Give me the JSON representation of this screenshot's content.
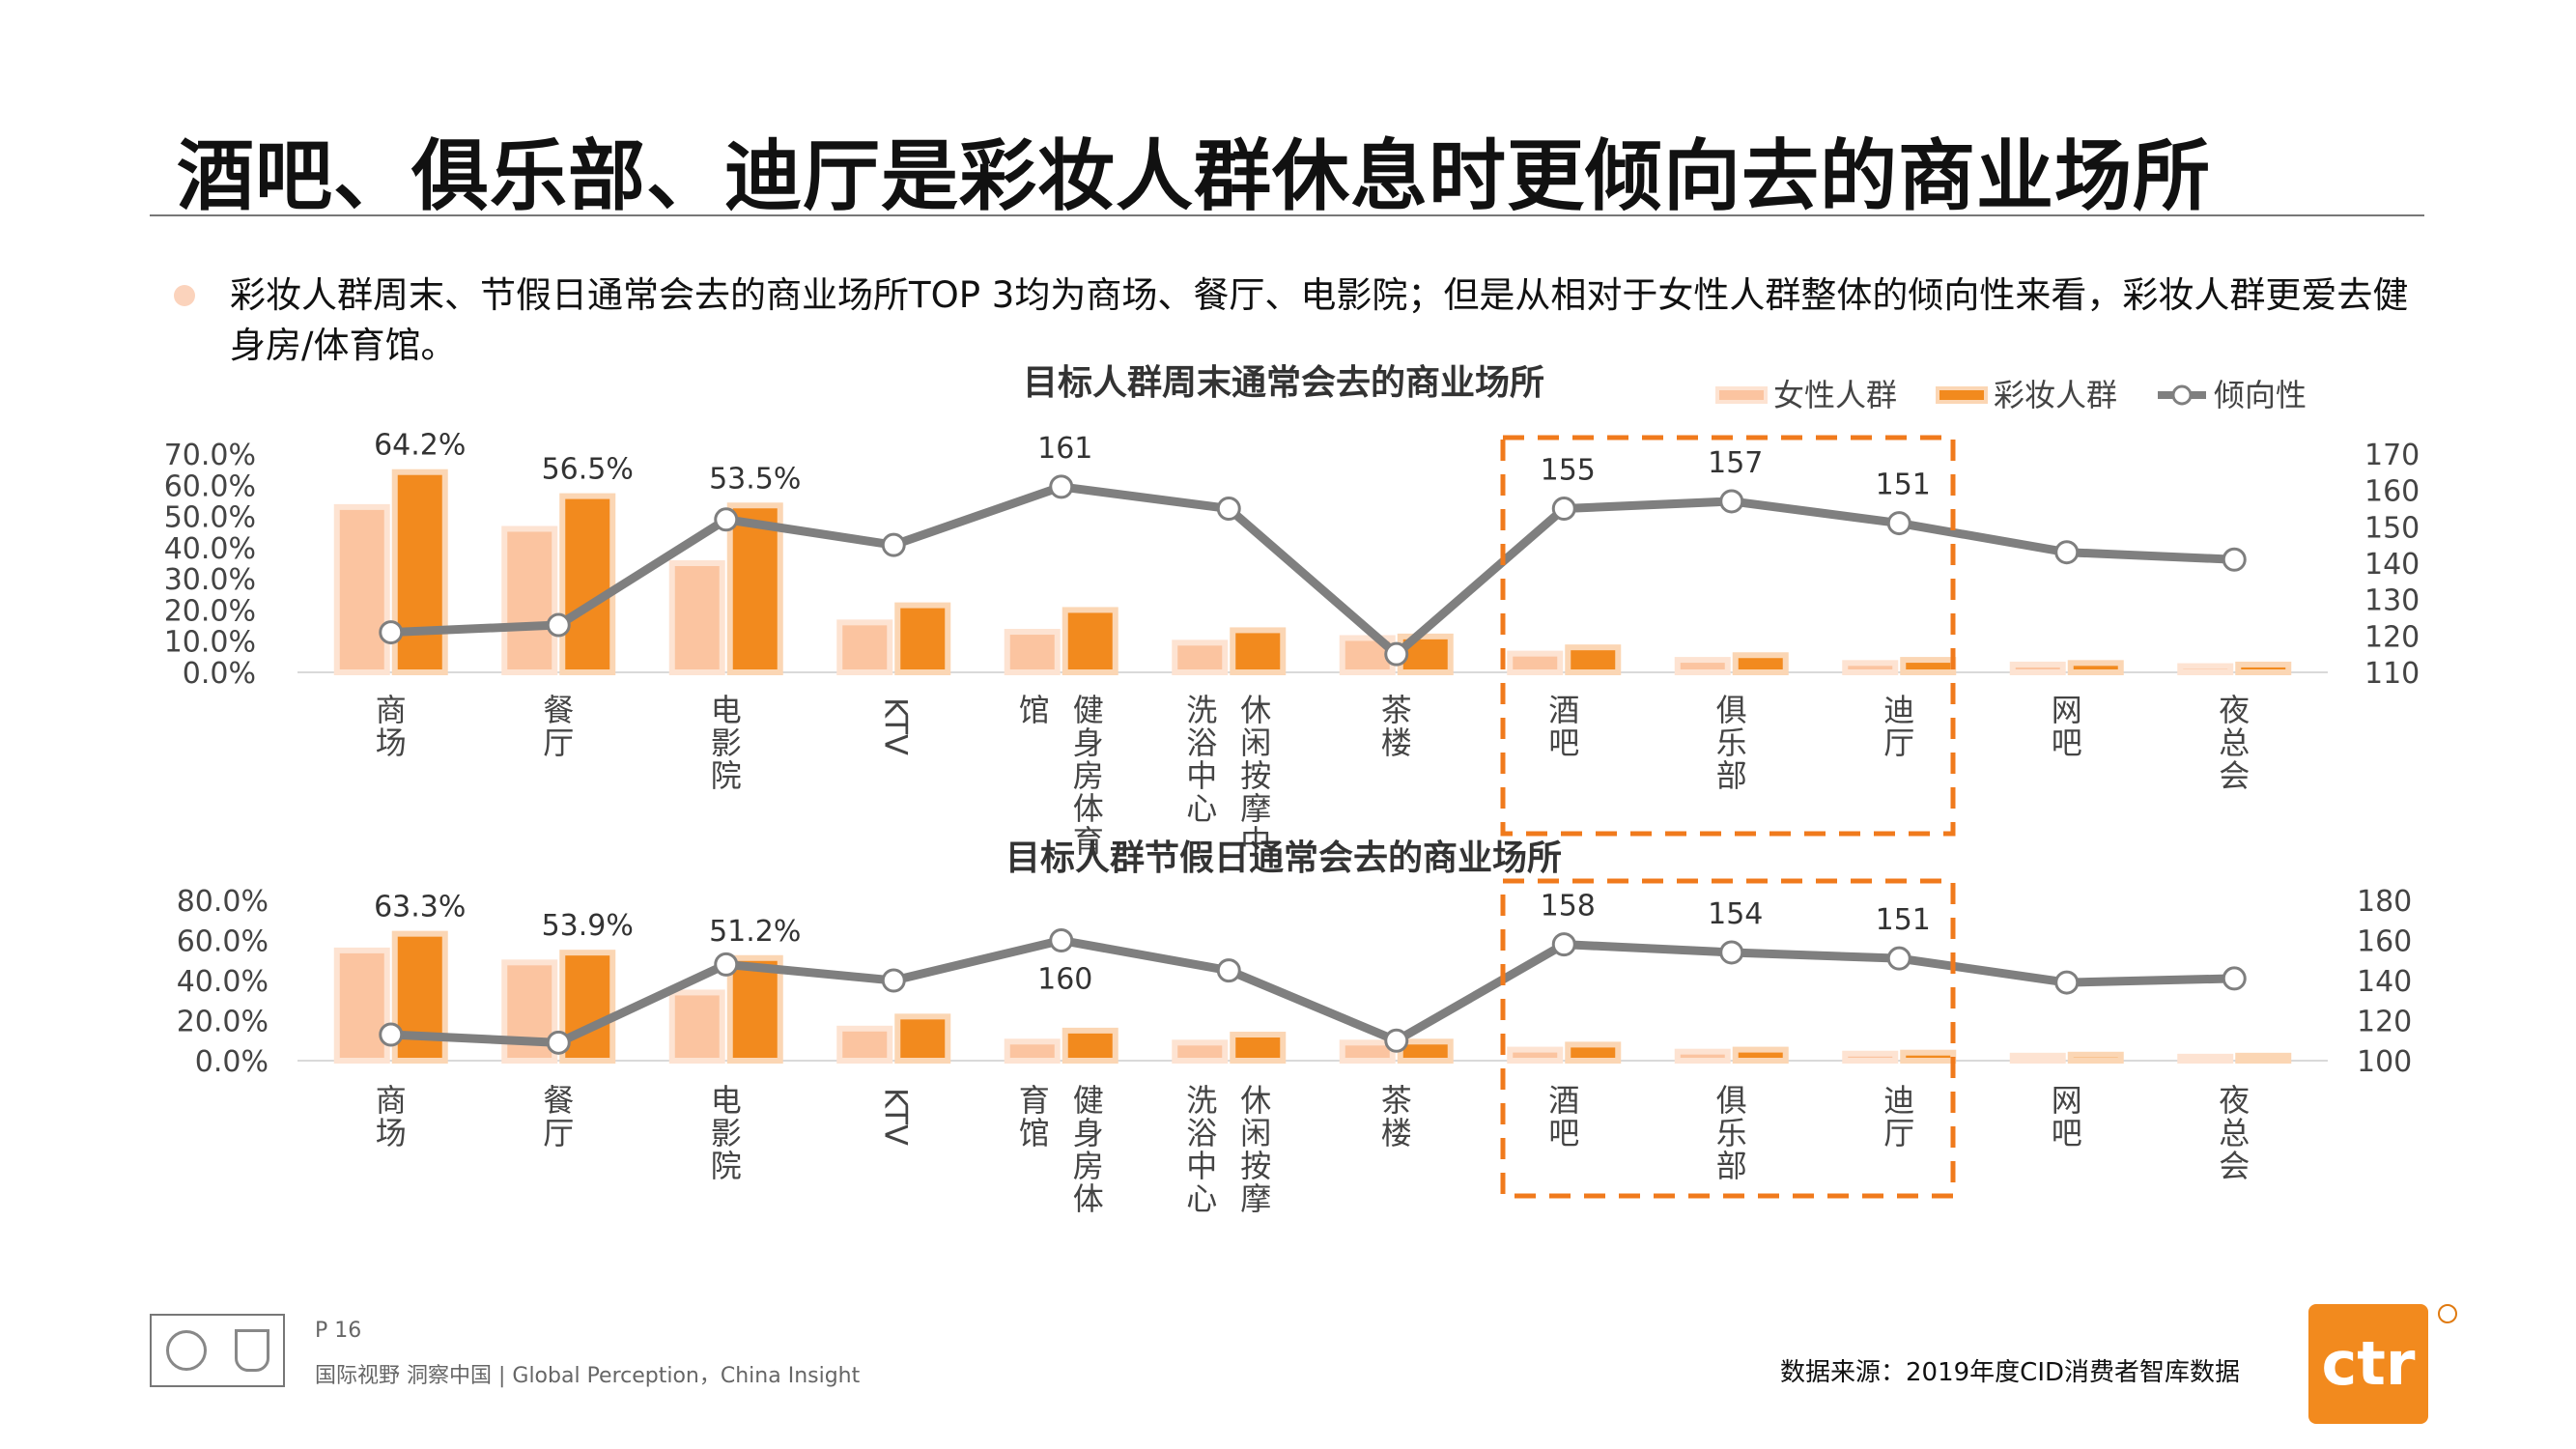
{
  "page": {
    "title": "酒吧、俱乐部、迪厅是彩妆人群休息时更倾向去的商业场所",
    "summary": "彩妆人群周末、节假日通常会去的商业场所TOP 3均为商场、餐厅、电影院；但是从相对于女性人群整体的倾向性来看，彩妆人群更爱去健身房/体育馆。",
    "page_number": "P 16",
    "tagline": "国际视野  洞察中国 |  Global Perception，China Insight",
    "source": "数据来源：2019年度CID消费者智库数据",
    "brand": "ctr"
  },
  "colors": {
    "female": "#fbc4a0",
    "female_border": "#fde3d2",
    "makeup": "#f28a1e",
    "makeup_border": "#fbd6b4",
    "line": "#7f7f7f",
    "highlight_box": "#f07a1c",
    "bullet": "#fbd3bc"
  },
  "legend": [
    "女性人群",
    "彩妆人群",
    "倾向性"
  ],
  "chart_data": [
    {
      "type": "bar",
      "title": "目标人群周末通常会去的商业场所",
      "categories": [
        "商场",
        "餐厅",
        "电影院",
        "KTV",
        "健身房/体育馆",
        "休闲按摩/洗浴中心",
        "茶楼",
        "酒吧",
        "俱乐部",
        "迪厅",
        "网吧",
        "夜总会"
      ],
      "category_label_lines": [
        [
          "商场"
        ],
        [
          "餐厅"
        ],
        [
          "电影院"
        ],
        [
          "KTV"
        ],
        [
          "健身房体育",
          "馆"
        ],
        [
          "休闲按摩中",
          "洗浴中心"
        ],
        [
          "茶楼"
        ],
        [
          "酒吧"
        ],
        [
          "俱乐部"
        ],
        [
          "迪厅"
        ],
        [
          "网吧"
        ],
        [
          "夜总会"
        ]
      ],
      "series": [
        {
          "name": "女性人群",
          "axis": "left",
          "values": [
            53.0,
            46.0,
            35.0,
            16.0,
            13.0,
            9.5,
            11.0,
            6.0,
            4.0,
            3.0,
            2.5,
            2.0
          ]
        },
        {
          "name": "彩妆人群",
          "axis": "left",
          "values": [
            64.2,
            56.5,
            53.5,
            21.5,
            20.0,
            13.5,
            11.5,
            8.0,
            5.5,
            4.0,
            3.0,
            2.5
          ]
        },
        {
          "name": "倾向性",
          "axis": "right",
          "type": "line",
          "values": [
            121,
            123,
            152,
            145,
            161,
            155,
            115,
            155,
            157,
            151,
            143,
            141
          ]
        }
      ],
      "bar_labels": {
        "makeup": [
          "64.2%",
          "56.5%",
          "53.5%",
          "",
          "",
          "",
          "",
          "",
          "",
          "",
          "",
          ""
        ]
      },
      "line_labels": [
        "",
        "",
        "",
        "",
        "161",
        "",
        "",
        "155",
        "157",
        "151",
        "",
        ""
      ],
      "ylim_left": [
        0,
        70
      ],
      "yticks_left": [
        "0.0%",
        "10.0%",
        "20.0%",
        "30.0%",
        "40.0%",
        "50.0%",
        "60.0%",
        "70.0%"
      ],
      "ylim_right": [
        110,
        170
      ],
      "yticks_right": [
        "110",
        "120",
        "130",
        "140",
        "150",
        "160",
        "170"
      ],
      "grid": false,
      "legend_position": "top-right"
    },
    {
      "type": "bar",
      "title": "目标人群节假日通常会去的商业场所",
      "categories": [
        "商场",
        "餐厅",
        "电影院",
        "KTV",
        "健身房/体育馆",
        "休闲按摩/洗浴中心",
        "茶楼",
        "酒吧",
        "俱乐部",
        "迪厅",
        "网吧",
        "夜总会"
      ],
      "category_label_lines": [
        [
          "商场"
        ],
        [
          "餐厅"
        ],
        [
          "电影院"
        ],
        [
          "KTV"
        ],
        [
          "健身房体",
          "育馆"
        ],
        [
          "休闲按摩",
          "洗浴中心"
        ],
        [
          "茶楼"
        ],
        [
          "酒吧"
        ],
        [
          "俱乐部"
        ],
        [
          "迪厅"
        ],
        [
          "网吧"
        ],
        [
          "夜总会"
        ]
      ],
      "series": [
        {
          "name": "女性人群",
          "axis": "left",
          "values": [
            55.0,
            49.0,
            34.0,
            16.0,
            9.5,
            9.0,
            9.0,
            5.5,
            4.5,
            3.5,
            2.5,
            2.0
          ]
        },
        {
          "name": "彩妆人群",
          "axis": "left",
          "values": [
            63.3,
            53.9,
            51.2,
            22.0,
            15.0,
            13.0,
            9.5,
            8.0,
            5.5,
            4.0,
            3.0,
            2.5
          ]
        },
        {
          "name": "倾向性",
          "axis": "right",
          "type": "line",
          "values": [
            113,
            109,
            148,
            140,
            160,
            145,
            110,
            158,
            154,
            151,
            139,
            141
          ]
        }
      ],
      "bar_labels": {
        "makeup": [
          "63.3%",
          "53.9%",
          "51.2%",
          "",
          "",
          "",
          "",
          "",
          "",
          "",
          "",
          ""
        ]
      },
      "line_labels": [
        "",
        "",
        "",
        "",
        "160",
        "",
        "",
        "158",
        "154",
        "151",
        "",
        ""
      ],
      "ylim_left": [
        0,
        80
      ],
      "yticks_left": [
        "0.0%",
        "20.0%",
        "40.0%",
        "60.0%",
        "80.0%"
      ],
      "ylim_right": [
        100,
        180
      ],
      "yticks_right": [
        "100",
        "120",
        "140",
        "160",
        "180"
      ],
      "grid": false
    }
  ]
}
